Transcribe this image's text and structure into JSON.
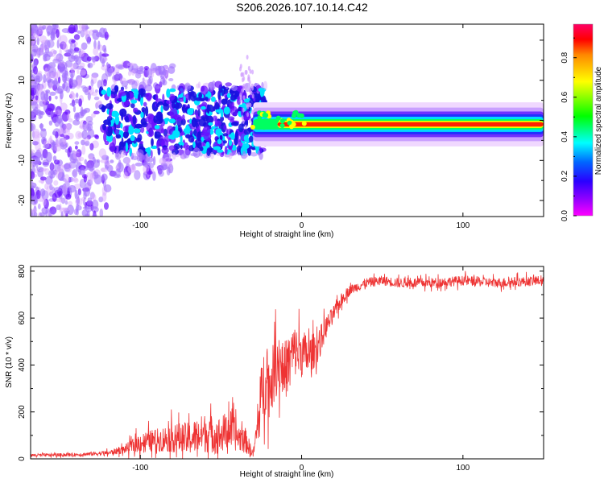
{
  "title": "S206.2026.107.10.14.C42",
  "chart_data": [
    {
      "type": "heatmap",
      "title": "S206.2026.107.10.14.C42",
      "xlabel": "Height of straight line (km)",
      "ylabel": "Frequency (Hz)",
      "xlim": [
        -168,
        150
      ],
      "ylim": [
        -24,
        24
      ],
      "x_ticks": [
        -100,
        0,
        100
      ],
      "y_ticks": [
        -20,
        -10,
        0,
        10,
        20
      ],
      "colorbar": {
        "label": "Normalized spectral amplitude",
        "range": [
          0,
          0.97
        ],
        "ticks": [
          0,
          0.2,
          0.4,
          0.6,
          0.8
        ],
        "tick_labels": [
          "0.0",
          "0.2",
          "0.4",
          "0.6",
          "0.8"
        ],
        "colors": [
          "#ff00ff",
          "#6a00ff",
          "#0000ff",
          "#00ffff",
          "#00ff00",
          "#ffff00",
          "#ff0000",
          "#ff0060"
        ]
      },
      "ridge": {
        "frequency_hz": -1,
        "start_km": -30,
        "end_km": 150,
        "peak_amplitude": 0.95
      },
      "noise_region": {
        "x_range": [
          -168,
          -30
        ],
        "description_amplitudes": [
          0.05,
          0.3
        ]
      }
    },
    {
      "type": "line",
      "xlabel": "Height of straight line (km)",
      "ylabel": "SNR (10 * v/v)",
      "xlim": [
        -168,
        150
      ],
      "ylim": [
        0,
        820
      ],
      "x_ticks": [
        -100,
        0,
        100
      ],
      "y_ticks": [
        0,
        200,
        400,
        600,
        800
      ],
      "series": [
        {
          "name": "SNR",
          "color": "#ee3333",
          "envelope_x": [
            -168,
            -140,
            -120,
            -110,
            -100,
            -90,
            -80,
            -70,
            -60,
            -50,
            -45,
            -40,
            -35,
            -30,
            -27,
            -25,
            -22,
            -20,
            -15,
            -10,
            -5,
            0,
            5,
            10,
            15,
            20,
            25,
            30,
            40,
            50,
            60,
            80,
            100,
            120,
            150
          ],
          "envelope_mean": [
            15,
            18,
            25,
            40,
            70,
            80,
            90,
            85,
            110,
            100,
            130,
            95,
            80,
            20,
            150,
            260,
            380,
            300,
            420,
            380,
            460,
            450,
            440,
            480,
            560,
            620,
            680,
            720,
            750,
            760,
            750,
            750,
            760,
            750,
            760
          ],
          "envelope_amp": [
            10,
            10,
            15,
            25,
            60,
            70,
            90,
            100,
            120,
            110,
            130,
            90,
            80,
            20,
            130,
            200,
            250,
            180,
            200,
            180,
            160,
            150,
            120,
            100,
            70,
            50,
            40,
            30,
            30,
            30,
            30,
            30,
            30,
            30,
            30
          ]
        }
      ]
    }
  ]
}
